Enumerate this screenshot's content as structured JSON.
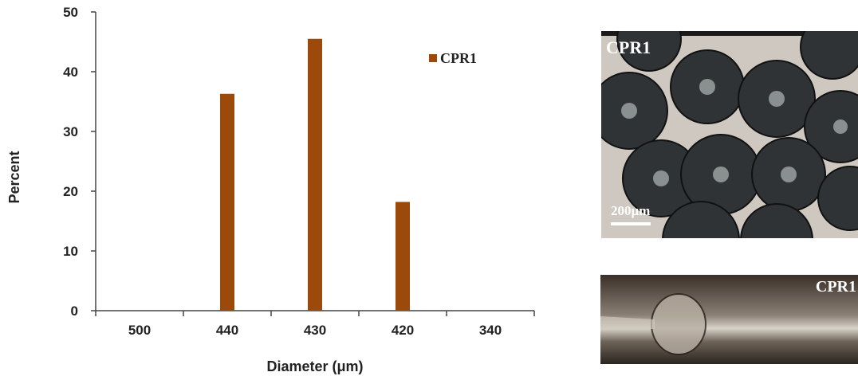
{
  "chart_data": {
    "type": "bar",
    "categories": [
      "500",
      "440",
      "430",
      "420",
      "340"
    ],
    "series": [
      {
        "name": "CPR1",
        "values": [
          0,
          36.3,
          45.5,
          18.2,
          0
        ]
      }
    ],
    "xlabel": "Diameter (μm)",
    "ylabel": "Percent",
    "ylim": [
      0,
      50
    ],
    "yticks": [
      "0",
      "10",
      "20",
      "30",
      "40",
      "50"
    ],
    "grid": false,
    "legend": "top-right",
    "colors": {
      "bar": "#9c4a0b"
    }
  },
  "images": {
    "top_photo": {
      "label": "CPR1",
      "scale_label": "200μm"
    },
    "bottom_photo": {
      "label": "CPR1"
    }
  }
}
